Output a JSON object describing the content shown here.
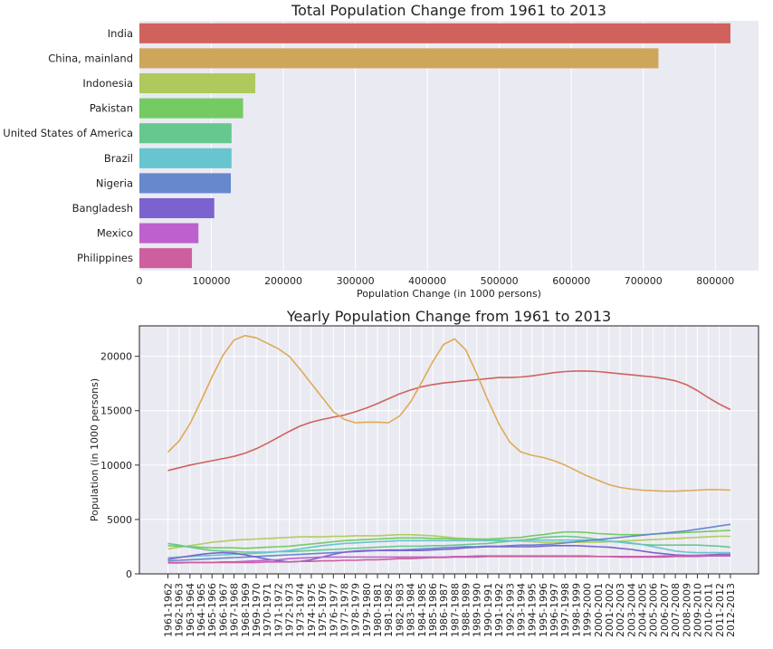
{
  "chart_data": [
    {
      "type": "bar",
      "orientation": "horizontal",
      "title": "Total Population Change from 1961 to 2013",
      "xlabel": "Population Change (in 1000 persons)",
      "ylabel": "",
      "xlim": [
        0,
        860000
      ],
      "xticks": [
        0,
        100000,
        200000,
        300000,
        400000,
        500000,
        600000,
        700000,
        800000
      ],
      "grid": true,
      "categories": [
        "India",
        "China, mainland",
        "Indonesia",
        "Pakistan",
        "United States of America",
        "Brazil",
        "Nigeria",
        "Bangladesh",
        "Mexico",
        "Philippines"
      ],
      "values": [
        821000,
        721000,
        161000,
        144000,
        128000,
        128000,
        127000,
        104000,
        82000,
        73000
      ],
      "colors": [
        "#d0625d",
        "#cda65c",
        "#afc95d",
        "#74cb63",
        "#67c88e",
        "#66c5ce",
        "#6788cc",
        "#7b62ce",
        "#bd61cf",
        "#cd5f9f"
      ]
    },
    {
      "type": "line",
      "title": "Yearly Population Change from 1961 to 2013",
      "xlabel": "",
      "ylabel": "Population (in 1000 persons)",
      "ylim": [
        0,
        22800
      ],
      "yticks": [
        0,
        5000,
        10000,
        15000,
        20000
      ],
      "grid": true,
      "x": [
        "1961-1962",
        "1962-1963",
        "1963-1964",
        "1964-1965",
        "1965-1966",
        "1966-1967",
        "1967-1968",
        "1968-1969",
        "1969-1970",
        "1970-1971",
        "1971-1972",
        "1972-1973",
        "1973-1974",
        "1974-1975",
        "1975-1976",
        "1976-1977",
        "1977-1978",
        "1978-1979",
        "1979-1980",
        "1980-1981",
        "1981-1982",
        "1982-1983",
        "1983-1984",
        "1984-1985",
        "1985-1986",
        "1986-1987",
        "1987-1988",
        "1988-1989",
        "1989-1990",
        "1990-1991",
        "1991-1992",
        "1992-1993",
        "1993-1994",
        "1994-1995",
        "1995-1996",
        "1996-1997",
        "1997-1998",
        "1998-1999",
        "1999-2000",
        "2000-2001",
        "2001-2002",
        "2002-2003",
        "2003-2004",
        "2004-2005",
        "2005-2006",
        "2006-2007",
        "2007-2008",
        "2008-2009",
        "2009-2010",
        "2010-2011",
        "2011-2012",
        "2012-2013"
      ],
      "series": [
        {
          "color": "#d0625d",
          "values": [
            9500,
            9750,
            10000,
            10200,
            10400,
            10600,
            10800,
            11100,
            11500,
            12000,
            12550,
            13100,
            13600,
            13950,
            14200,
            14400,
            14600,
            14900,
            15250,
            15650,
            16100,
            16550,
            16900,
            17200,
            17400,
            17550,
            17650,
            17750,
            17850,
            17950,
            18050,
            18050,
            18100,
            18200,
            18350,
            18500,
            18600,
            18650,
            18650,
            18600,
            18500,
            18400,
            18300,
            18200,
            18100,
            17950,
            17750,
            17400,
            16850,
            16200,
            15600,
            15100
          ]
        },
        {
          "color": "#dfaa55",
          "values": [
            11200,
            12200,
            13800,
            15900,
            18100,
            20100,
            21500,
            21900,
            21700,
            21200,
            20700,
            20000,
            18800,
            17500,
            16200,
            14900,
            14200,
            13900,
            13950,
            13950,
            13900,
            14500,
            15800,
            17600,
            19500,
            21100,
            21600,
            20600,
            18400,
            16000,
            13800,
            12100,
            11200,
            10900,
            10700,
            10400,
            10000,
            9500,
            9000,
            8600,
            8200,
            7950,
            7800,
            7700,
            7650,
            7600,
            7600,
            7650,
            7700,
            7750,
            7750,
            7700
          ]
        },
        {
          "color": "#b2cc5e",
          "values": [
            2300,
            2450,
            2600,
            2750,
            2900,
            3000,
            3100,
            3150,
            3200,
            3250,
            3300,
            3350,
            3400,
            3400,
            3400,
            3450,
            3450,
            3500,
            3500,
            3500,
            3550,
            3600,
            3600,
            3550,
            3500,
            3400,
            3300,
            3250,
            3200,
            3150,
            3100,
            3050,
            3000,
            2950,
            2900,
            2900,
            2900,
            2900,
            2900,
            2900,
            2950,
            3000,
            3050,
            3100,
            3150,
            3200,
            3250,
            3300,
            3350,
            3400,
            3450,
            3450
          ]
        },
        {
          "color": "#74cb63",
          "values": [
            2600,
            2550,
            2500,
            2450,
            2400,
            2400,
            2400,
            2350,
            2400,
            2450,
            2500,
            2550,
            2650,
            2750,
            2850,
            2950,
            3050,
            3100,
            3150,
            3200,
            3250,
            3300,
            3300,
            3300,
            3250,
            3250,
            3200,
            3200,
            3200,
            3200,
            3250,
            3300,
            3350,
            3500,
            3600,
            3750,
            3850,
            3850,
            3800,
            3700,
            3650,
            3600,
            3600,
            3600,
            3650,
            3700,
            3750,
            3800,
            3850,
            3900,
            3950,
            4000
          ]
        },
        {
          "color": "#67c88e",
          "values": [
            2800,
            2650,
            2450,
            2300,
            2150,
            2100,
            2050,
            2000,
            2000,
            2000,
            2050,
            2050,
            2100,
            2150,
            2200,
            2250,
            2300,
            2350,
            2400,
            2450,
            2500,
            2550,
            2550,
            2550,
            2600,
            2600,
            2650,
            2700,
            2750,
            2800,
            2900,
            3000,
            3100,
            3200,
            3350,
            3400,
            3450,
            3400,
            3300,
            3150,
            3000,
            2900,
            2800,
            2700,
            2650,
            2650,
            2650,
            2650,
            2650,
            2600,
            2550,
            2450
          ]
        },
        {
          "color": "#66c5ce",
          "values": [
            1500,
            1550,
            1600,
            1650,
            1700,
            1750,
            1800,
            1850,
            1900,
            1950,
            2050,
            2150,
            2300,
            2450,
            2600,
            2700,
            2800,
            2850,
            2900,
            2950,
            3000,
            3050,
            3050,
            3050,
            3050,
            3050,
            3050,
            3050,
            3050,
            3050,
            3050,
            3050,
            3100,
            3100,
            3100,
            3100,
            3100,
            3100,
            3100,
            3050,
            3000,
            2950,
            2850,
            2700,
            2500,
            2300,
            2100,
            2000,
            1950,
            1950,
            1950,
            1950
          ]
        },
        {
          "color": "#6788cc",
          "values": [
            1200,
            1250,
            1300,
            1350,
            1400,
            1450,
            1500,
            1550,
            1600,
            1650,
            1700,
            1750,
            1800,
            1850,
            1900,
            1950,
            2000,
            2050,
            2100,
            2150,
            2200,
            2200,
            2250,
            2300,
            2350,
            2400,
            2450,
            2500,
            2500,
            2550,
            2550,
            2600,
            2650,
            2650,
            2700,
            2750,
            2850,
            2950,
            3050,
            3150,
            3250,
            3350,
            3450,
            3550,
            3650,
            3750,
            3850,
            3950,
            4100,
            4250,
            4400,
            4550
          ]
        },
        {
          "color": "#7b62ce",
          "values": [
            1350,
            1500,
            1650,
            1800,
            1900,
            1950,
            1900,
            1750,
            1550,
            1350,
            1200,
            1100,
            1150,
            1300,
            1550,
            1800,
            2000,
            2100,
            2150,
            2150,
            2150,
            2150,
            2150,
            2150,
            2200,
            2250,
            2300,
            2400,
            2450,
            2500,
            2500,
            2500,
            2500,
            2500,
            2550,
            2600,
            2600,
            2600,
            2550,
            2500,
            2450,
            2350,
            2250,
            2100,
            1950,
            1850,
            1750,
            1700,
            1700,
            1750,
            1800,
            1800
          ]
        },
        {
          "color": "#bd61cf",
          "values": [
            1000,
            1000,
            1050,
            1050,
            1050,
            1100,
            1100,
            1150,
            1200,
            1250,
            1300,
            1400,
            1450,
            1500,
            1550,
            1550,
            1550,
            1550,
            1550,
            1550,
            1550,
            1550,
            1550,
            1550,
            1550,
            1550,
            1600,
            1600,
            1650,
            1650,
            1650,
            1650,
            1650,
            1650,
            1650,
            1650,
            1650,
            1650,
            1650,
            1600,
            1600,
            1550,
            1550,
            1550,
            1550,
            1550,
            1600,
            1600,
            1600,
            1650,
            1650,
            1650
          ]
        },
        {
          "color": "#cd5f9f",
          "values": [
            1050,
            1050,
            1050,
            1050,
            1050,
            1050,
            1050,
            1050,
            1050,
            1100,
            1100,
            1100,
            1150,
            1150,
            1200,
            1200,
            1250,
            1250,
            1300,
            1300,
            1350,
            1400,
            1400,
            1450,
            1500,
            1500,
            1550,
            1550,
            1550,
            1600,
            1600,
            1600,
            1600,
            1600,
            1600,
            1600,
            1600,
            1600,
            1600,
            1600,
            1600,
            1600,
            1600,
            1600,
            1600,
            1650,
            1650,
            1650,
            1700,
            1700,
            1700,
            1700
          ]
        }
      ]
    }
  ]
}
